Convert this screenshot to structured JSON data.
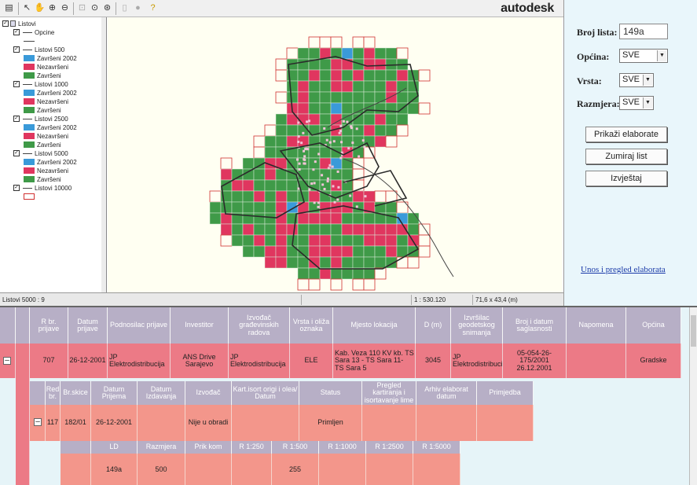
{
  "brand": "autodesk",
  "toolbar": {
    "icons": [
      "layers-icon",
      "select-arrow-icon",
      "pan-hand-icon",
      "zoom-in-icon",
      "zoom-out-icon",
      "zoom-window-icon",
      "zoom-previous-icon",
      "zoom-goto-icon",
      "print-icon",
      "globe-icon",
      "help-icon"
    ]
  },
  "tree": {
    "root": "Listovi",
    "items": [
      {
        "type": "layer",
        "label": "Opcine",
        "checked": true
      },
      {
        "type": "line"
      },
      {
        "type": "layer",
        "label": "Listovi 500",
        "checked": true
      },
      {
        "type": "sub",
        "label": "Završeni 2002",
        "color": "#3a9ad9"
      },
      {
        "type": "sub",
        "label": "Nezavršeni",
        "color": "#e0365f"
      },
      {
        "type": "sub",
        "label": "Završeni",
        "color": "#3f9a48"
      },
      {
        "type": "layer",
        "label": "Listovi 1000",
        "checked": true
      },
      {
        "type": "sub",
        "label": "Završeni 2002",
        "color": "#3a9ad9"
      },
      {
        "type": "sub",
        "label": "Nezavršeni",
        "color": "#e0365f"
      },
      {
        "type": "sub",
        "label": "Završeni",
        "color": "#3f9a48"
      },
      {
        "type": "layer",
        "label": "Listovi 2500",
        "checked": true
      },
      {
        "type": "sub",
        "label": "Završeni 2002",
        "color": "#3a9ad9"
      },
      {
        "type": "sub",
        "label": "Nezavršeni",
        "color": "#e0365f"
      },
      {
        "type": "sub",
        "label": "Završeni",
        "color": "#3f9a48"
      },
      {
        "type": "layer",
        "label": "Listovi 5000",
        "checked": true
      },
      {
        "type": "sub",
        "label": "Završeni 2002",
        "color": "#3a9ad9"
      },
      {
        "type": "sub",
        "label": "Nezavršeni",
        "color": "#e0365f"
      },
      {
        "type": "sub",
        "label": "Završeni",
        "color": "#3f9a48"
      },
      {
        "type": "layer",
        "label": "Listovi 10000",
        "checked": true
      },
      {
        "type": "outline",
        "color": "#d03030"
      }
    ]
  },
  "status": {
    "layer": "Listovi 5000 : 9",
    "scale": "1 : 530.120",
    "coords": "71,6 x 43,4 (m)"
  },
  "panel": {
    "broj_lista_label": "Broj lista:",
    "broj_lista_value": "149a",
    "opcina_label": "Općina:",
    "opcina_value": "SVE",
    "vrsta_label": "Vrsta:",
    "vrsta_value": "SVE",
    "razmjera_label": "Razmjera:",
    "razmjera_value": "SVE",
    "btn_prikazi": "Prikaži elaborate",
    "btn_zumiraj": "Zumiraj list",
    "btn_izvjestaj": "Izvještaj",
    "link_unos": "Unos i pregled elaborata"
  },
  "colors": {
    "zavrseni": "#3f9a48",
    "nezavrseni": "#e0365f",
    "zavrseni_2002": "#3a9ad9",
    "sheet_outline": "#d03030",
    "header": "#b7afc6"
  },
  "table1": {
    "headers": [
      "R br. prijave",
      "Datum prijave",
      "Podnosilac prijave",
      "Investitor",
      "Izvođač građevinskih radova",
      "Vrsta i oliža oznaka",
      "Mjesto lokacija",
      "D (m)",
      "Izvršilac geodetskog snimanja",
      "Broj i datum saglasnosti",
      "Napomena",
      "Općina"
    ],
    "row": [
      "707",
      "26-12-2001",
      "JP Elektrodistribucija",
      "ANS Drive Sarajevo",
      "JP Elektrodistribucija",
      "ELE",
      "Kab. Veza 110 KV kb. TS Sara 13 - TS Sara 11- TS Sara 5",
      "3045",
      "JP Elektrodistribucija",
      "05-054-26-175/2001 26.12.2001",
      "",
      "Gradske"
    ]
  },
  "table2": {
    "headers": [
      "Red br.",
      "Br.skice",
      "Datum Prijema",
      "Datum Izdavanja",
      "Izvođač",
      "Kart.isort origi i olea/ Datum",
      "Status",
      "Pregled kartiranja i isortavanje lime",
      "Arhiv elaborat datum",
      "Primjedba"
    ],
    "row": [
      "117",
      "182/01",
      "26-12-2001",
      "",
      "Nije u obradi",
      "",
      "Primljen",
      "",
      "",
      ""
    ]
  },
  "table3": {
    "headers": [
      "LD",
      "Razmjera",
      "Prik kom",
      "R 1:250",
      "R 1:500",
      "R 1:1000",
      "R 1:2500",
      "R 1:5000"
    ],
    "row": [
      "149a",
      "500",
      "",
      "",
      "255",
      "",
      "",
      ""
    ]
  }
}
